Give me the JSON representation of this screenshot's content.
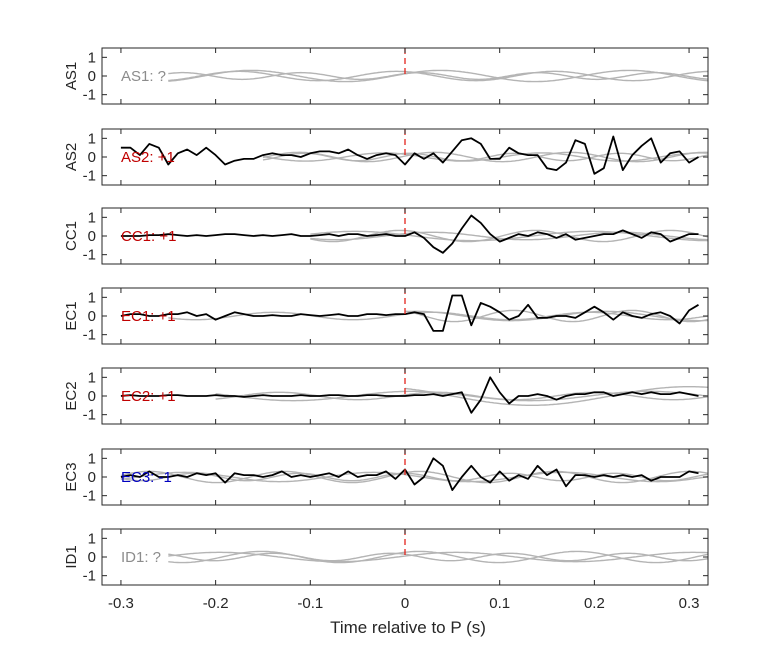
{
  "chart_data": {
    "type": "line",
    "xlabel": "Time relative to P (s)",
    "xlim": [
      -0.32,
      0.32
    ],
    "x_ticks": [
      -0.3,
      -0.2,
      -0.1,
      0,
      0.1,
      0.2,
      0.3
    ],
    "x_tick_labels": [
      "-0.3",
      "-0.2",
      "-0.1",
      "0",
      "0.1",
      "0.2",
      "0.3"
    ],
    "ylim": [
      -1.5,
      1.5
    ],
    "y_ticks": [
      1,
      0,
      -1
    ],
    "y_tick_labels": [
      "1",
      "0",
      "-1"
    ],
    "pick_line": {
      "x": 0,
      "color": "#e3241c",
      "style": "dashed"
    },
    "colors": {
      "positive": "#c00000",
      "negative": "#0000c0",
      "unknown": "#8c8c8c",
      "trace": "#000000",
      "background": "#b4b4b4"
    },
    "black_x": [
      -0.3,
      -0.29,
      -0.28,
      -0.27,
      -0.26,
      -0.25,
      -0.24,
      -0.23,
      -0.22,
      -0.21,
      -0.2,
      -0.19,
      -0.18,
      -0.17,
      -0.16,
      -0.15,
      -0.14,
      -0.13,
      -0.12,
      -0.11,
      -0.1,
      -0.09,
      -0.08,
      -0.07,
      -0.06,
      -0.05,
      -0.04,
      -0.03,
      -0.02,
      -0.01,
      0.0,
      0.01,
      0.02,
      0.03,
      0.04,
      0.05,
      0.06,
      0.07,
      0.08,
      0.09,
      0.1,
      0.11,
      0.12,
      0.13,
      0.14,
      0.15,
      0.16,
      0.17,
      0.18,
      0.19,
      0.2,
      0.21,
      0.22,
      0.23,
      0.24,
      0.25,
      0.26,
      0.27,
      0.28,
      0.29,
      0.3,
      0.31
    ],
    "panels": [
      {
        "name": "AS1",
        "label": "AS1: ?",
        "polarity": "unknown",
        "black": [],
        "gray": [
          {
            "amp": 0.3,
            "freq": 5,
            "phase": 0.4,
            "start": -0.25
          },
          {
            "amp": 0.25,
            "freq": 6,
            "phase": 1.9,
            "start": -0.25
          },
          {
            "amp": 0.18,
            "freq": 8,
            "phase": 0.8,
            "start": -0.25
          }
        ]
      },
      {
        "name": "AS2",
        "label": "AS2: +1",
        "polarity": "positive",
        "black": [
          0.5,
          0.5,
          0.1,
          0.7,
          0.5,
          -0.4,
          0.2,
          0.4,
          0.1,
          0.5,
          0.1,
          -0.4,
          -0.2,
          -0.1,
          -0.1,
          0.1,
          0.2,
          0.1,
          0.1,
          0.0,
          0.2,
          0.3,
          0.3,
          0.2,
          0.4,
          0.1,
          -0.1,
          0.1,
          0.2,
          0.1,
          -0.4,
          0.2,
          -0.1,
          0.2,
          -0.3,
          0.3,
          0.9,
          1.0,
          0.7,
          -0.1,
          -0.1,
          0.5,
          0.2,
          0.1,
          0.1,
          -0.6,
          -0.7,
          -0.3,
          0.9,
          0.7,
          -0.9,
          -0.6,
          1.1,
          -0.7,
          0.1,
          0.6,
          1.0,
          -0.3,
          0.2,
          0.3,
          -0.3,
          0.0
        ],
        "gray": [
          {
            "amp": 0.25,
            "freq": 7,
            "phase": 0.2,
            "start": -0.15
          },
          {
            "amp": 0.2,
            "freq": 9,
            "phase": 1.3,
            "start": -0.15
          },
          {
            "amp": 0.22,
            "freq": 6,
            "phase": 2.4,
            "start": -0.15
          }
        ]
      },
      {
        "name": "CC1",
        "label": "CC1: +1",
        "polarity": "positive",
        "black": [
          0.0,
          0.0,
          0.0,
          0.05,
          0.05,
          0.1,
          0.05,
          0.0,
          0.05,
          0.0,
          0.05,
          0.1,
          0.1,
          0.05,
          0.0,
          0.05,
          0.0,
          0.05,
          0.1,
          0.0,
          0.0,
          0.05,
          0.1,
          0.0,
          0.1,
          0.1,
          0.0,
          0.05,
          0.1,
          0.0,
          0.0,
          0.2,
          -0.1,
          -0.6,
          -0.9,
          -0.4,
          0.4,
          1.1,
          0.7,
          0.1,
          -0.3,
          -0.1,
          0.1,
          0.0,
          0.2,
          0.1,
          -0.1,
          0.1,
          -0.2,
          -0.1,
          0.0,
          0.1,
          0.1,
          0.3,
          0.1,
          -0.1,
          0.2,
          0.1,
          -0.3,
          -0.1,
          0.1,
          0.1
        ],
        "gray": [
          {
            "amp": 0.2,
            "freq": 5,
            "phase": 0.7,
            "start": -0.1
          },
          {
            "amp": 0.3,
            "freq": 7,
            "phase": 1.8,
            "start": -0.1
          },
          {
            "amp": 0.25,
            "freq": 4,
            "phase": 2.9,
            "start": -0.1
          }
        ]
      },
      {
        "name": "EC1",
        "label": "EC1: +1",
        "polarity": "positive",
        "black": [
          0.0,
          0.1,
          0.1,
          0.0,
          0.0,
          0.1,
          0.1,
          0.2,
          0.0,
          0.1,
          -0.2,
          0.0,
          0.2,
          0.1,
          0.0,
          0.0,
          0.05,
          0.0,
          0.0,
          0.1,
          0.05,
          0.0,
          0.05,
          0.1,
          0.0,
          0.0,
          0.1,
          0.1,
          0.05,
          0.1,
          0.1,
          0.2,
          0.1,
          -0.8,
          -0.8,
          1.1,
          1.1,
          -0.5,
          0.7,
          0.5,
          0.2,
          -0.2,
          0.0,
          0.6,
          -0.1,
          -0.1,
          0.0,
          0.0,
          -0.1,
          0.2,
          0.5,
          0.2,
          -0.2,
          0.2,
          0.0,
          -0.1,
          0.1,
          0.2,
          0.0,
          -0.4,
          0.3,
          0.6
        ],
        "gray": [
          {
            "amp": 0.2,
            "freq": 6,
            "phase": 0.5,
            "start": -0.25
          },
          {
            "amp": 0.3,
            "freq": 8,
            "phase": 2.1,
            "start": 0.0
          },
          {
            "amp": 0.25,
            "freq": 5,
            "phase": 1.2,
            "start": 0.0
          }
        ]
      },
      {
        "name": "EC2",
        "label": "EC2: +1",
        "polarity": "positive",
        "black": [
          0.0,
          0.05,
          0.0,
          0.0,
          0.0,
          0.05,
          0.05,
          0.0,
          0.0,
          0.0,
          0.05,
          0.0,
          0.0,
          -0.05,
          0.0,
          0.05,
          0.0,
          0.0,
          0.0,
          0.05,
          0.0,
          0.0,
          0.05,
          0.05,
          0.0,
          0.0,
          0.05,
          0.05,
          0.0,
          0.0,
          0.0,
          0.05,
          0.05,
          0.1,
          0.0,
          0.1,
          0.2,
          -0.9,
          -0.2,
          1.0,
          0.2,
          -0.4,
          0.0,
          0.0,
          0.1,
          0.0,
          -0.2,
          0.0,
          0.1,
          0.1,
          0.2,
          0.2,
          0.0,
          0.1,
          0.2,
          0.1,
          0.2,
          0.1,
          0.1,
          0.2,
          0.1,
          0.0
        ],
        "gray": [
          {
            "amp": 0.5,
            "freq": 3,
            "phase": 2.2,
            "start": 0.0
          },
          {
            "amp": 0.2,
            "freq": 6,
            "phase": 0.3,
            "start": -0.2
          },
          {
            "amp": 0.25,
            "freq": 4,
            "phase": 1.4,
            "start": -0.2
          }
        ]
      },
      {
        "name": "EC3",
        "label": "EC3: -1",
        "polarity": "negative",
        "black": [
          0.0,
          0.1,
          0.0,
          0.3,
          0.0,
          0.0,
          0.1,
          0.0,
          0.2,
          0.1,
          0.2,
          -0.3,
          0.2,
          0.1,
          0.1,
          0.0,
          0.1,
          0.3,
          0.0,
          0.1,
          0.0,
          0.1,
          0.2,
          0.0,
          0.3,
          0.0,
          0.1,
          0.1,
          0.3,
          -0.1,
          0.4,
          -0.4,
          0.0,
          1.0,
          0.6,
          -0.7,
          0.0,
          0.6,
          0.0,
          -0.3,
          0.3,
          -0.2,
          0.1,
          -0.1,
          0.6,
          0.1,
          0.4,
          -0.5,
          0.1,
          0.1,
          0.0,
          0.1,
          0.0,
          0.1,
          0.0,
          0.1,
          -0.2,
          0.0,
          0.0,
          0.0,
          0.3,
          0.2
        ],
        "gray": [
          {
            "amp": 0.3,
            "freq": 7,
            "phase": 0.9,
            "start": -0.3
          },
          {
            "amp": 0.25,
            "freq": 5,
            "phase": 2.6,
            "start": -0.3
          },
          {
            "amp": 0.2,
            "freq": 9,
            "phase": 1.6,
            "start": -0.3
          }
        ]
      },
      {
        "name": "ID1",
        "label": "ID1: ?",
        "polarity": "unknown",
        "black": [],
        "gray": [
          {
            "amp": 0.3,
            "freq": 6,
            "phase": 1.0,
            "start": -0.25
          },
          {
            "amp": 0.2,
            "freq": 8,
            "phase": 2.3,
            "start": -0.25
          },
          {
            "amp": 0.25,
            "freq": 4,
            "phase": 0.2,
            "start": -0.25
          }
        ]
      }
    ]
  }
}
